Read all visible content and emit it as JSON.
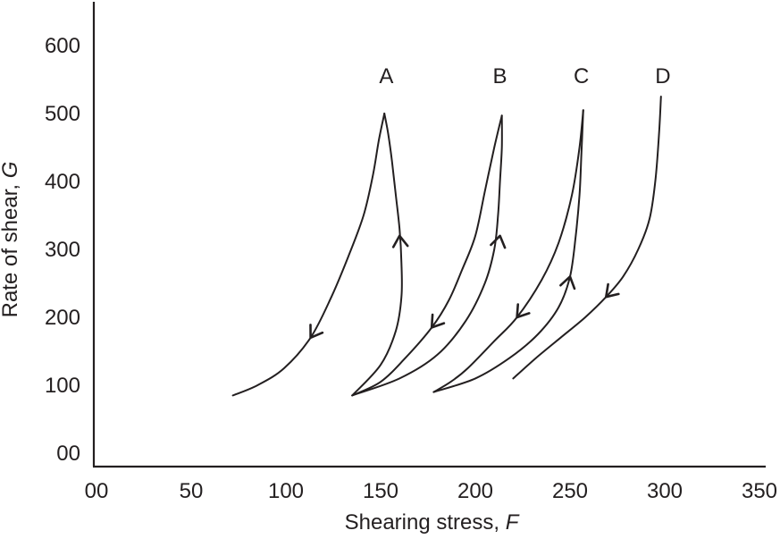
{
  "chart_data": {
    "type": "line",
    "title": "",
    "xlabel": "Shearing stress, ",
    "xlabel_var": "F",
    "ylabel": "Rate of shear, ",
    "ylabel_var": "G",
    "xlim": [
      0,
      350
    ],
    "ylim": [
      0,
      650
    ],
    "x_ticks": [
      0,
      50,
      100,
      150,
      200,
      250,
      300,
      350
    ],
    "x_tick_labels": [
      "00",
      "50",
      "100",
      "150",
      "200",
      "250",
      "300",
      "350"
    ],
    "y_ticks": [
      0,
      100,
      200,
      300,
      400,
      500,
      600
    ],
    "y_tick_labels": [
      "00",
      "100",
      "200",
      "300",
      "400",
      "500",
      "600"
    ],
    "grid": false,
    "series": [
      {
        "name": "A",
        "label": "A",
        "label_at": [
          153,
          555
        ],
        "up_curve": [
          [
            135,
            85
          ],
          [
            150,
            130
          ],
          [
            158,
            180
          ],
          [
            161,
            230
          ],
          [
            161,
            280
          ],
          [
            160,
            330
          ],
          [
            158,
            380
          ],
          [
            156,
            430
          ],
          [
            154,
            470
          ],
          [
            152,
            500
          ]
        ],
        "down_curve": [
          [
            152,
            500
          ],
          [
            149,
            460
          ],
          [
            146,
            410
          ],
          [
            141,
            350
          ],
          [
            133,
            290
          ],
          [
            124,
            230
          ],
          [
            113,
            170
          ],
          [
            99,
            125
          ],
          [
            85,
            100
          ],
          [
            72,
            85
          ]
        ],
        "arrows": [
          {
            "at": [
              160,
              320
            ],
            "direction": "up"
          },
          {
            "at": [
              113,
              170
            ],
            "direction": "down"
          }
        ]
      },
      {
        "name": "B",
        "label": "B",
        "label_at": [
          213,
          555
        ],
        "up_curve": [
          [
            135,
            85
          ],
          [
            160,
            110
          ],
          [
            180,
            145
          ],
          [
            195,
            195
          ],
          [
            205,
            250
          ],
          [
            210,
            300
          ],
          [
            212,
            350
          ],
          [
            213,
            400
          ],
          [
            214,
            450
          ],
          [
            214,
            497
          ]
        ],
        "down_curve": [
          [
            214,
            497
          ],
          [
            210,
            450
          ],
          [
            205,
            385
          ],
          [
            200,
            320
          ],
          [
            193,
            270
          ],
          [
            186,
            225
          ],
          [
            177,
            185
          ],
          [
            163,
            140
          ],
          [
            150,
            105
          ],
          [
            135,
            85
          ]
        ],
        "arrows": [
          {
            "at": [
              213,
              320
            ],
            "direction": "up"
          },
          {
            "at": [
              177,
              185
            ],
            "direction": "down"
          }
        ]
      },
      {
        "name": "C",
        "label": "C",
        "label_at": [
          256,
          555
        ],
        "up_curve": [
          [
            178,
            90
          ],
          [
            200,
            110
          ],
          [
            218,
            140
          ],
          [
            233,
            175
          ],
          [
            244,
            215
          ],
          [
            250,
            260
          ],
          [
            253,
            320
          ],
          [
            255,
            380
          ],
          [
            256,
            440
          ],
          [
            257,
            505
          ]
        ],
        "down_curve": [
          [
            257,
            505
          ],
          [
            255,
            450
          ],
          [
            251,
            380
          ],
          [
            244,
            310
          ],
          [
            235,
            255
          ],
          [
            222,
            200
          ],
          [
            210,
            165
          ],
          [
            196,
            125
          ],
          [
            187,
            105
          ],
          [
            178,
            90
          ]
        ],
        "arrows": [
          {
            "at": [
              250,
              260
            ],
            "direction": "up"
          },
          {
            "at": [
              222,
              200
            ],
            "direction": "down"
          }
        ]
      },
      {
        "name": "D",
        "label": "D",
        "label_at": [
          299,
          555
        ],
        "up_curve": [],
        "down_curve": [
          [
            298,
            525
          ],
          [
            297,
            470
          ],
          [
            295,
            400
          ],
          [
            292,
            345
          ],
          [
            286,
            300
          ],
          [
            278,
            260
          ],
          [
            269,
            230
          ],
          [
            258,
            200
          ],
          [
            245,
            170
          ],
          [
            232,
            140
          ],
          [
            220,
            110
          ]
        ],
        "arrows": [
          {
            "at": [
              269,
              230
            ],
            "direction": "down"
          }
        ]
      }
    ]
  }
}
